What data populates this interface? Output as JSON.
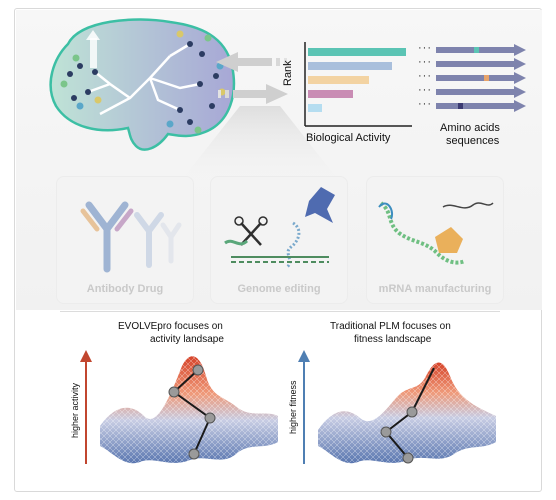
{
  "chart": {
    "ylabel": "Rank",
    "xlabel": "Biological Activity",
    "bar_colors": [
      "#5bc4b4",
      "#a9bfdc",
      "#f3d3a2",
      "#c98cb4",
      "#b5ddf0"
    ],
    "bar_values": [
      1.0,
      0.86,
      0.62,
      0.46,
      0.14
    ]
  },
  "sequences": {
    "label_line1": "Amino acids",
    "label_line2": "sequences",
    "ellipsis": "···",
    "arrow_color": "#7e83ad"
  },
  "panels": [
    {
      "label": "Antibody Drug",
      "icon": "antibody-icon"
    },
    {
      "label": "Genome editing",
      "icon": "crispr-scissors-icon"
    },
    {
      "label": "mRNA manufacturing",
      "icon": "mrna-polymerase-icon"
    }
  ],
  "landscapes": [
    {
      "title_line1": "EVOLVEpro focuses on",
      "title_line2": "activity landsape",
      "axis_label": "higher activity",
      "axis_color": "#c1462f"
    },
    {
      "title_line1": "Traditional PLM focuses on",
      "title_line2": "fitness landscape",
      "axis_label": "higher fitness",
      "axis_color": "#4f7fb3"
    }
  ],
  "colors": {
    "brain_fill": "#b9ddd2",
    "brain_stroke": "#3cbfa4",
    "arrow_gray": "#cfcfcf"
  }
}
